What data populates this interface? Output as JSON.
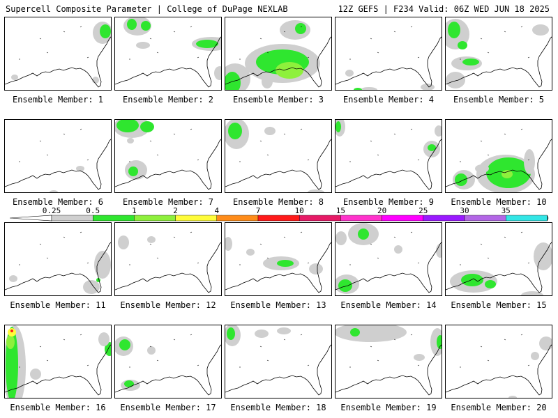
{
  "header": {
    "left_title": "Supercell Composite Parameter | College of DuPage NEXLAB",
    "right_title": "12Z GEFS | F234 Valid: 06Z WED JUN 18 2025"
  },
  "colorbar": {
    "ticks": [
      "0.25",
      "0.5",
      "1",
      "2",
      "4",
      "7",
      "10",
      "15",
      "20",
      "25",
      "30",
      "35"
    ],
    "colors": [
      "#cfcfcf",
      "#2fe62f",
      "#8ef03c",
      "#fffc3a",
      "#ff8c1a",
      "#ff1a1a",
      "#e61a66",
      "#ff33cc",
      "#ff00ff",
      "#9a1aff",
      "#b366e6",
      "#33e6e6"
    ],
    "end_colors": {
      "left": "#ffffff",
      "right": "#33e6e6"
    }
  },
  "members": [
    {
      "label": "Ensemble Member: 1",
      "blobs": [
        [
          "#cfcfcf",
          140,
          22,
          14,
          16
        ],
        [
          "#2fe62f",
          144,
          20,
          8,
          10
        ],
        [
          "#cfcfcf",
          14,
          86,
          5,
          4
        ],
        [
          "#cfcfcf",
          130,
          90,
          5,
          5
        ]
      ]
    },
    {
      "label": "Ensemble Member: 2",
      "blobs": [
        [
          "#cfcfcf",
          32,
          12,
          20,
          14
        ],
        [
          "#2fe62f",
          24,
          10,
          7,
          8
        ],
        [
          "#2fe62f",
          44,
          12,
          7,
          7
        ],
        [
          "#cfcfcf",
          138,
          38,
          28,
          10
        ],
        [
          "#2fe62f",
          132,
          38,
          16,
          6
        ],
        [
          "#cfcfcf",
          40,
          40,
          10,
          5
        ],
        [
          "#cfcfcf",
          150,
          80,
          8,
          10
        ]
      ]
    },
    {
      "label": "Ensemble Member: 3",
      "blobs": [
        [
          "#cfcfcf",
          100,
          18,
          22,
          14
        ],
        [
          "#2fe62f",
          108,
          16,
          8,
          8
        ],
        [
          "#cfcfcf",
          82,
          66,
          54,
          28
        ],
        [
          "#2fe62f",
          82,
          64,
          38,
          18
        ],
        [
          "#8ef03c",
          92,
          76,
          20,
          12
        ],
        [
          "#cfcfcf",
          14,
          88,
          22,
          22
        ],
        [
          "#2fe62f",
          10,
          94,
          12,
          16
        ],
        [
          "#cfcfcf",
          60,
          92,
          8,
          10
        ]
      ]
    },
    {
      "label": "Ensemble Member: 4",
      "blobs": [
        [
          "#cfcfcf",
          20,
          80,
          6,
          5
        ],
        [
          "#cfcfcf",
          48,
          104,
          12,
          4
        ],
        [
          "#2fe62f",
          32,
          104,
          6,
          3
        ],
        [
          "#cfcfcf",
          132,
          100,
          10,
          5
        ]
      ]
    },
    {
      "label": "Ensemble Member: 5",
      "blobs": [
        [
          "#cfcfcf",
          14,
          24,
          20,
          22
        ],
        [
          "#2fe62f",
          12,
          18,
          9,
          12
        ],
        [
          "#2fe62f",
          24,
          40,
          7,
          6
        ],
        [
          "#cfcfcf",
          30,
          66,
          22,
          10
        ],
        [
          "#2fe62f",
          36,
          64,
          12,
          5
        ],
        [
          "#cfcfcf",
          14,
          90,
          14,
          12
        ],
        [
          "#cfcfcf",
          136,
          18,
          12,
          8
        ]
      ]
    },
    {
      "label": "Ensemble Member: 6",
      "blobs": [
        [
          "#cfcfcf",
          108,
          70,
          6,
          4
        ],
        [
          "#cfcfcf",
          70,
          104,
          6,
          3
        ]
      ]
    },
    {
      "label": "Ensemble Member: 7",
      "blobs": [
        [
          "#cfcfcf",
          24,
          10,
          26,
          16
        ],
        [
          "#2fe62f",
          18,
          8,
          16,
          10
        ],
        [
          "#2fe62f",
          46,
          10,
          10,
          8
        ],
        [
          "#cfcfcf",
          30,
          72,
          16,
          14
        ],
        [
          "#2fe62f",
          26,
          74,
          7,
          7
        ],
        [
          "#cfcfcf",
          22,
          30,
          5,
          4
        ]
      ]
    },
    {
      "label": "Ensemble Member: 8",
      "blobs": [
        [
          "#cfcfcf",
          16,
          20,
          18,
          22
        ],
        [
          "#2fe62f",
          14,
          16,
          10,
          12
        ],
        [
          "#cfcfcf",
          64,
          16,
          8,
          6
        ],
        [
          "#cfcfcf",
          130,
          104,
          12,
          4
        ]
      ]
    },
    {
      "label": "Ensemble Member: 9",
      "blobs": [
        [
          "#cfcfcf",
          6,
          10,
          8,
          14
        ],
        [
          "#2fe62f",
          4,
          10,
          4,
          8
        ],
        [
          "#cfcfcf",
          138,
          42,
          12,
          12
        ],
        [
          "#2fe62f",
          138,
          40,
          6,
          5
        ],
        [
          "#cfcfcf",
          148,
          16,
          6,
          8
        ]
      ]
    },
    {
      "label": "Ensemble Member: 10",
      "blobs": [
        [
          "#cfcfcf",
          86,
          78,
          42,
          28
        ],
        [
          "#2fe62f",
          90,
          76,
          32,
          22
        ],
        [
          "#8ef03c",
          88,
          78,
          8,
          6
        ],
        [
          "#cfcfcf",
          26,
          86,
          16,
          14
        ],
        [
          "#2fe62f",
          22,
          86,
          9,
          9
        ],
        [
          "#cfcfcf",
          52,
          70,
          10,
          6
        ],
        [
          "#cfcfcf",
          120,
          60,
          8,
          18
        ]
      ]
    },
    {
      "label": "Ensemble Member: 11",
      "blobs": [
        [
          "#cfcfcf",
          140,
          60,
          12,
          20
        ],
        [
          "#cfcfcf",
          124,
          92,
          12,
          10
        ],
        [
          "#2fe62f",
          134,
          82,
          3,
          3
        ],
        [
          "#cfcfcf",
          12,
          80,
          6,
          5
        ]
      ]
    },
    {
      "label": "Ensemble Member: 12",
      "blobs": [
        [
          "#cfcfcf",
          12,
          28,
          8,
          10
        ],
        [
          "#cfcfcf",
          52,
          24,
          6,
          5
        ]
      ]
    },
    {
      "label": "Ensemble Member: 13",
      "blobs": [
        [
          "#cfcfcf",
          80,
          58,
          26,
          10
        ],
        [
          "#2fe62f",
          86,
          58,
          12,
          5
        ],
        [
          "#cfcfcf",
          130,
          66,
          10,
          8
        ],
        [
          "#cfcfcf",
          36,
          42,
          6,
          5
        ],
        [
          "#cfcfcf",
          4,
          30,
          6,
          10
        ]
      ]
    },
    {
      "label": "Ensemble Member: 14",
      "blobs": [
        [
          "#cfcfcf",
          40,
          16,
          22,
          16
        ],
        [
          "#2fe62f",
          40,
          16,
          8,
          8
        ],
        [
          "#cfcfcf",
          8,
          22,
          8,
          10
        ],
        [
          "#cfcfcf",
          16,
          88,
          18,
          14
        ],
        [
          "#2fe62f",
          14,
          90,
          10,
          9
        ],
        [
          "#cfcfcf",
          90,
          38,
          6,
          6
        ],
        [
          "#cfcfcf",
          150,
          40,
          6,
          10
        ]
      ]
    },
    {
      "label": "Ensemble Member: 15",
      "blobs": [
        [
          "#cfcfcf",
          40,
          84,
          34,
          16
        ],
        [
          "#2fe62f",
          38,
          82,
          16,
          9
        ],
        [
          "#2fe62f",
          64,
          88,
          8,
          6
        ],
        [
          "#cfcfcf",
          140,
          48,
          14,
          20
        ],
        [
          "#cfcfcf",
          124,
          104,
          16,
          6
        ]
      ]
    },
    {
      "label": "Ensemble Member: 16",
      "blobs": [
        [
          "#cfcfcf",
          14,
          60,
          16,
          60
        ],
        [
          "#2fe62f",
          10,
          56,
          9,
          54
        ],
        [
          "#8ef03c",
          8,
          24,
          6,
          10
        ],
        [
          "#fffc3a",
          10,
          10,
          6,
          6
        ],
        [
          "#ff1a1a",
          10,
          8,
          2,
          2
        ],
        [
          "#cfcfcf",
          44,
          70,
          8,
          8
        ],
        [
          "#2fe62f",
          150,
          34,
          7,
          10
        ],
        [
          "#cfcfcf",
          142,
          20,
          8,
          10
        ]
      ]
    },
    {
      "label": "Ensemble Member: 17",
      "blobs": [
        [
          "#cfcfcf",
          12,
          30,
          14,
          14
        ],
        [
          "#2fe62f",
          14,
          28,
          8,
          8
        ],
        [
          "#cfcfcf",
          22,
          86,
          14,
          8
        ],
        [
          "#2fe62f",
          20,
          84,
          7,
          5
        ],
        [
          "#cfcfcf",
          52,
          36,
          6,
          6
        ]
      ]
    },
    {
      "label": "Ensemble Member: 18",
      "blobs": [
        [
          "#cfcfcf",
          10,
          14,
          12,
          16
        ],
        [
          "#2fe62f",
          8,
          12,
          6,
          9
        ],
        [
          "#cfcfcf",
          52,
          12,
          10,
          6
        ],
        [
          "#cfcfcf",
          84,
          8,
          10,
          5
        ]
      ]
    },
    {
      "label": "Ensemble Member: 19",
      "blobs": [
        [
          "#cfcfcf",
          50,
          10,
          52,
          14
        ],
        [
          "#2fe62f",
          28,
          10,
          7,
          6
        ],
        [
          "#cfcfcf",
          146,
          24,
          10,
          20
        ],
        [
          "#2fe62f",
          150,
          24,
          5,
          10
        ],
        [
          "#cfcfcf",
          120,
          46,
          8,
          5
        ]
      ]
    },
    {
      "label": "Ensemble Member: 20",
      "blobs": [
        [
          "#cfcfcf",
          144,
          26,
          10,
          10
        ],
        [
          "#cfcfcf",
          128,
          44,
          6,
          6
        ],
        [
          "#cfcfcf",
          96,
          104,
          6,
          3
        ]
      ]
    }
  ]
}
